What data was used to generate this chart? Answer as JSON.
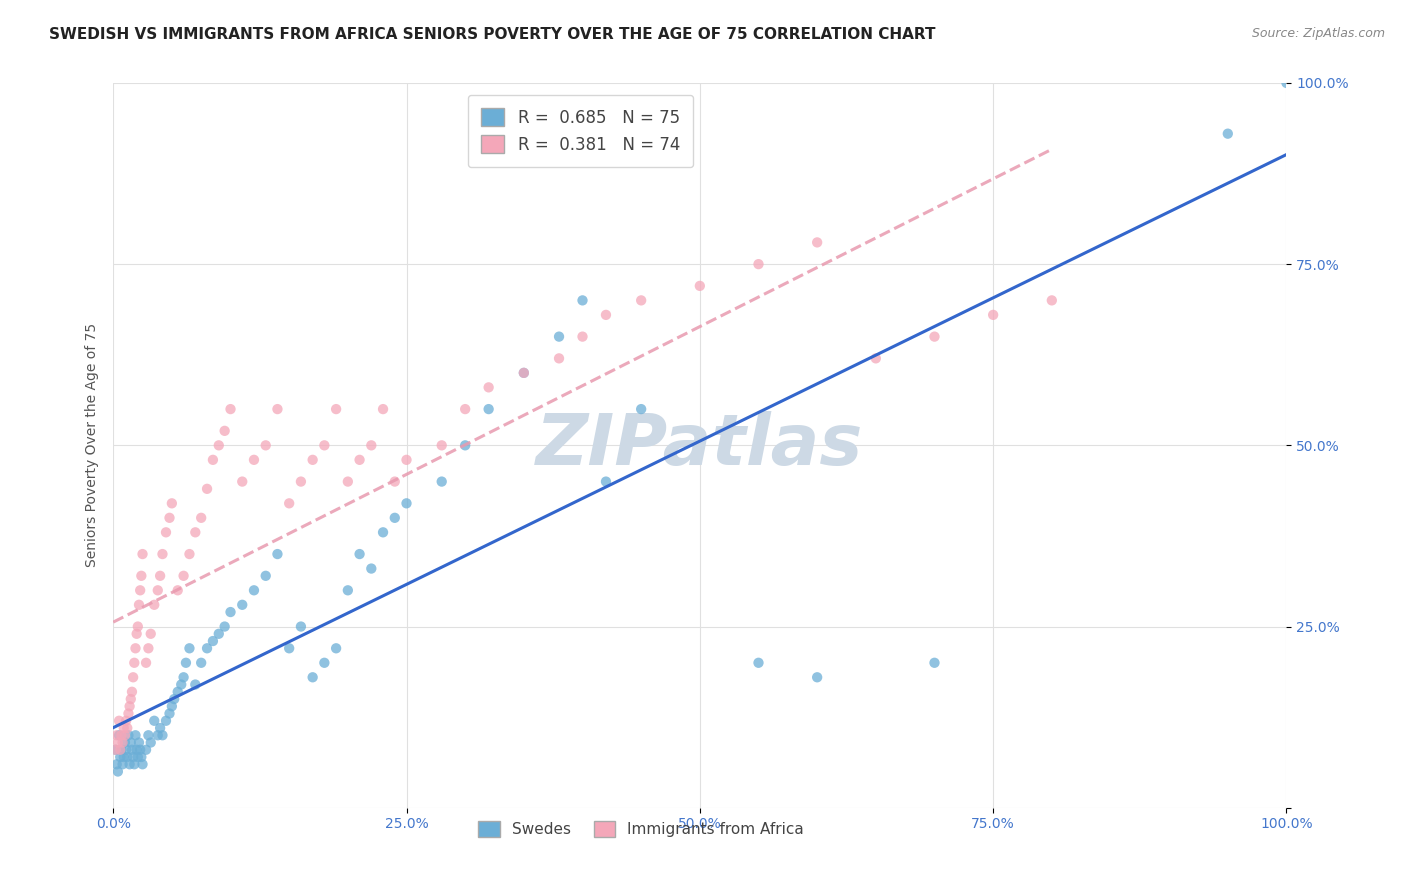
{
  "title": "SWEDISH VS IMMIGRANTS FROM AFRICA SENIORS POVERTY OVER THE AGE OF 75 CORRELATION CHART",
  "source": "Source: ZipAtlas.com",
  "ylabel": "Seniors Poverty Over the Age of 75",
  "background_color": "#ffffff",
  "watermark": "ZIPatlas",
  "legend_swedes_R": 0.685,
  "legend_swedes_N": 75,
  "legend_immig_R": 0.381,
  "legend_immig_N": 74,
  "swedes_x": [
    0.002,
    0.003,
    0.004,
    0.005,
    0.006,
    0.007,
    0.008,
    0.009,
    0.01,
    0.011,
    0.012,
    0.013,
    0.014,
    0.015,
    0.016,
    0.017,
    0.018,
    0.019,
    0.02,
    0.021,
    0.022,
    0.023,
    0.024,
    0.025,
    0.028,
    0.03,
    0.032,
    0.035,
    0.038,
    0.04,
    0.042,
    0.045,
    0.048,
    0.05,
    0.052,
    0.055,
    0.058,
    0.06,
    0.062,
    0.065,
    0.07,
    0.075,
    0.08,
    0.085,
    0.09,
    0.095,
    0.1,
    0.11,
    0.12,
    0.13,
    0.14,
    0.15,
    0.16,
    0.17,
    0.18,
    0.19,
    0.2,
    0.21,
    0.22,
    0.23,
    0.24,
    0.25,
    0.28,
    0.3,
    0.32,
    0.35,
    0.38,
    0.4,
    0.42,
    0.45,
    0.55,
    0.6,
    0.7,
    0.95,
    1.0
  ],
  "swedes_y": [
    0.08,
    0.06,
    0.05,
    0.1,
    0.07,
    0.08,
    0.06,
    0.07,
    0.09,
    0.08,
    0.07,
    0.1,
    0.06,
    0.09,
    0.08,
    0.07,
    0.06,
    0.1,
    0.08,
    0.07,
    0.09,
    0.08,
    0.07,
    0.06,
    0.08,
    0.1,
    0.09,
    0.12,
    0.1,
    0.11,
    0.1,
    0.12,
    0.13,
    0.14,
    0.15,
    0.16,
    0.17,
    0.18,
    0.2,
    0.22,
    0.17,
    0.2,
    0.22,
    0.23,
    0.24,
    0.25,
    0.27,
    0.28,
    0.3,
    0.32,
    0.35,
    0.22,
    0.25,
    0.18,
    0.2,
    0.22,
    0.3,
    0.35,
    0.33,
    0.38,
    0.4,
    0.42,
    0.45,
    0.5,
    0.55,
    0.6,
    0.65,
    0.7,
    0.45,
    0.55,
    0.2,
    0.18,
    0.2,
    0.93,
    1.0
  ],
  "immigrants_x": [
    0.002,
    0.003,
    0.004,
    0.005,
    0.006,
    0.007,
    0.008,
    0.009,
    0.01,
    0.011,
    0.012,
    0.013,
    0.014,
    0.015,
    0.016,
    0.017,
    0.018,
    0.019,
    0.02,
    0.021,
    0.022,
    0.023,
    0.024,
    0.025,
    0.028,
    0.03,
    0.032,
    0.035,
    0.038,
    0.04,
    0.042,
    0.045,
    0.048,
    0.05,
    0.055,
    0.06,
    0.065,
    0.07,
    0.075,
    0.08,
    0.085,
    0.09,
    0.095,
    0.1,
    0.11,
    0.12,
    0.13,
    0.14,
    0.15,
    0.16,
    0.17,
    0.18,
    0.19,
    0.2,
    0.21,
    0.22,
    0.23,
    0.24,
    0.25,
    0.28,
    0.3,
    0.32,
    0.35,
    0.38,
    0.4,
    0.42,
    0.45,
    0.5,
    0.55,
    0.6,
    0.65,
    0.7,
    0.75,
    0.8
  ],
  "immigrants_y": [
    0.08,
    0.1,
    0.09,
    0.12,
    0.08,
    0.1,
    0.09,
    0.11,
    0.1,
    0.12,
    0.11,
    0.13,
    0.14,
    0.15,
    0.16,
    0.18,
    0.2,
    0.22,
    0.24,
    0.25,
    0.28,
    0.3,
    0.32,
    0.35,
    0.2,
    0.22,
    0.24,
    0.28,
    0.3,
    0.32,
    0.35,
    0.38,
    0.4,
    0.42,
    0.3,
    0.32,
    0.35,
    0.38,
    0.4,
    0.44,
    0.48,
    0.5,
    0.52,
    0.55,
    0.45,
    0.48,
    0.5,
    0.55,
    0.42,
    0.45,
    0.48,
    0.5,
    0.55,
    0.45,
    0.48,
    0.5,
    0.55,
    0.45,
    0.48,
    0.5,
    0.55,
    0.58,
    0.6,
    0.62,
    0.65,
    0.68,
    0.7,
    0.72,
    0.75,
    0.78,
    0.62,
    0.65,
    0.68,
    0.7
  ],
  "xlim": [
    0,
    1.0
  ],
  "ylim": [
    0,
    1.0
  ],
  "xticks": [
    0.0,
    0.25,
    0.5,
    0.75,
    1.0
  ],
  "yticks": [
    0.0,
    0.25,
    0.5,
    0.75,
    1.0
  ],
  "xticklabels": [
    "0.0%",
    "25.0%",
    "50.0%",
    "75.0%",
    "100.0%"
  ],
  "yticklabels": [
    "",
    "25.0%",
    "50.0%",
    "75.0%",
    "100.0%"
  ],
  "swedes_color": "#6baed6",
  "immigrants_color": "#f4a7b9",
  "swedes_line_color": "#3366cc",
  "immigrants_line_color": "#e89aaf",
  "grid_color": "#e0e0e0",
  "title_fontsize": 11,
  "label_fontsize": 10,
  "tick_fontsize": 10,
  "watermark_color": "#cdd9e5",
  "watermark_fontsize": 52
}
